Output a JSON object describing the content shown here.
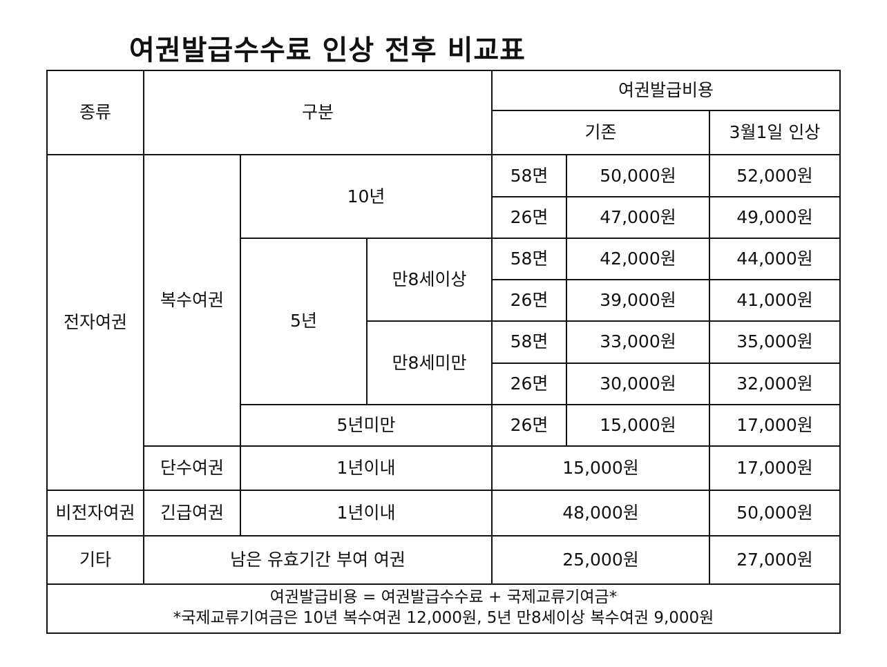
{
  "title": "여권발급수수료 인상 전후 비교표",
  "header": {
    "type": "종류",
    "category": "구분",
    "cost": "여권발급비용",
    "before": "기존",
    "after": "3월1일 인상"
  },
  "groups": {
    "electronic": "전자여권",
    "multi": "복수여권",
    "single": "단수여권",
    "non_electronic": "비전자여권",
    "emergency": "긴급여권",
    "other": "기타"
  },
  "terms": {
    "ten_years": "10년",
    "five_years": "5년",
    "over8": "만8세이상",
    "under8": "만8세미만",
    "under5": "5년미만",
    "within1": "1년이내",
    "within1b": "1년이내",
    "remaining": "남은 유효기간 부여 여권"
  },
  "rows": [
    {
      "pages": "58면",
      "before": "50,000원",
      "after": "52,000원"
    },
    {
      "pages": "26면",
      "before": "47,000원",
      "after": "49,000원"
    },
    {
      "pages": "58면",
      "before": "42,000원",
      "after": "44,000원"
    },
    {
      "pages": "26면",
      "before": "39,000원",
      "after": "41,000원"
    },
    {
      "pages": "58면",
      "before": "33,000원",
      "after": "35,000원"
    },
    {
      "pages": "26면",
      "before": "30,000원",
      "after": "32,000원"
    },
    {
      "pages": "26면",
      "before": "15,000원",
      "after": "17,000원"
    }
  ],
  "single_row": {
    "before": "15,000원",
    "after": "17,000원"
  },
  "emergency_row": {
    "before": "48,000원",
    "after": "50,000원"
  },
  "other_row": {
    "before": "25,000원",
    "after": "27,000원"
  },
  "footnote": {
    "line1": "여권발급비용 = 여권발급수수료 + 국제교류기여금*",
    "line2": "*국제교류기여금은 10년 복수여권 12,000원, 5년 만8세이상 복수여권 9,000원"
  }
}
